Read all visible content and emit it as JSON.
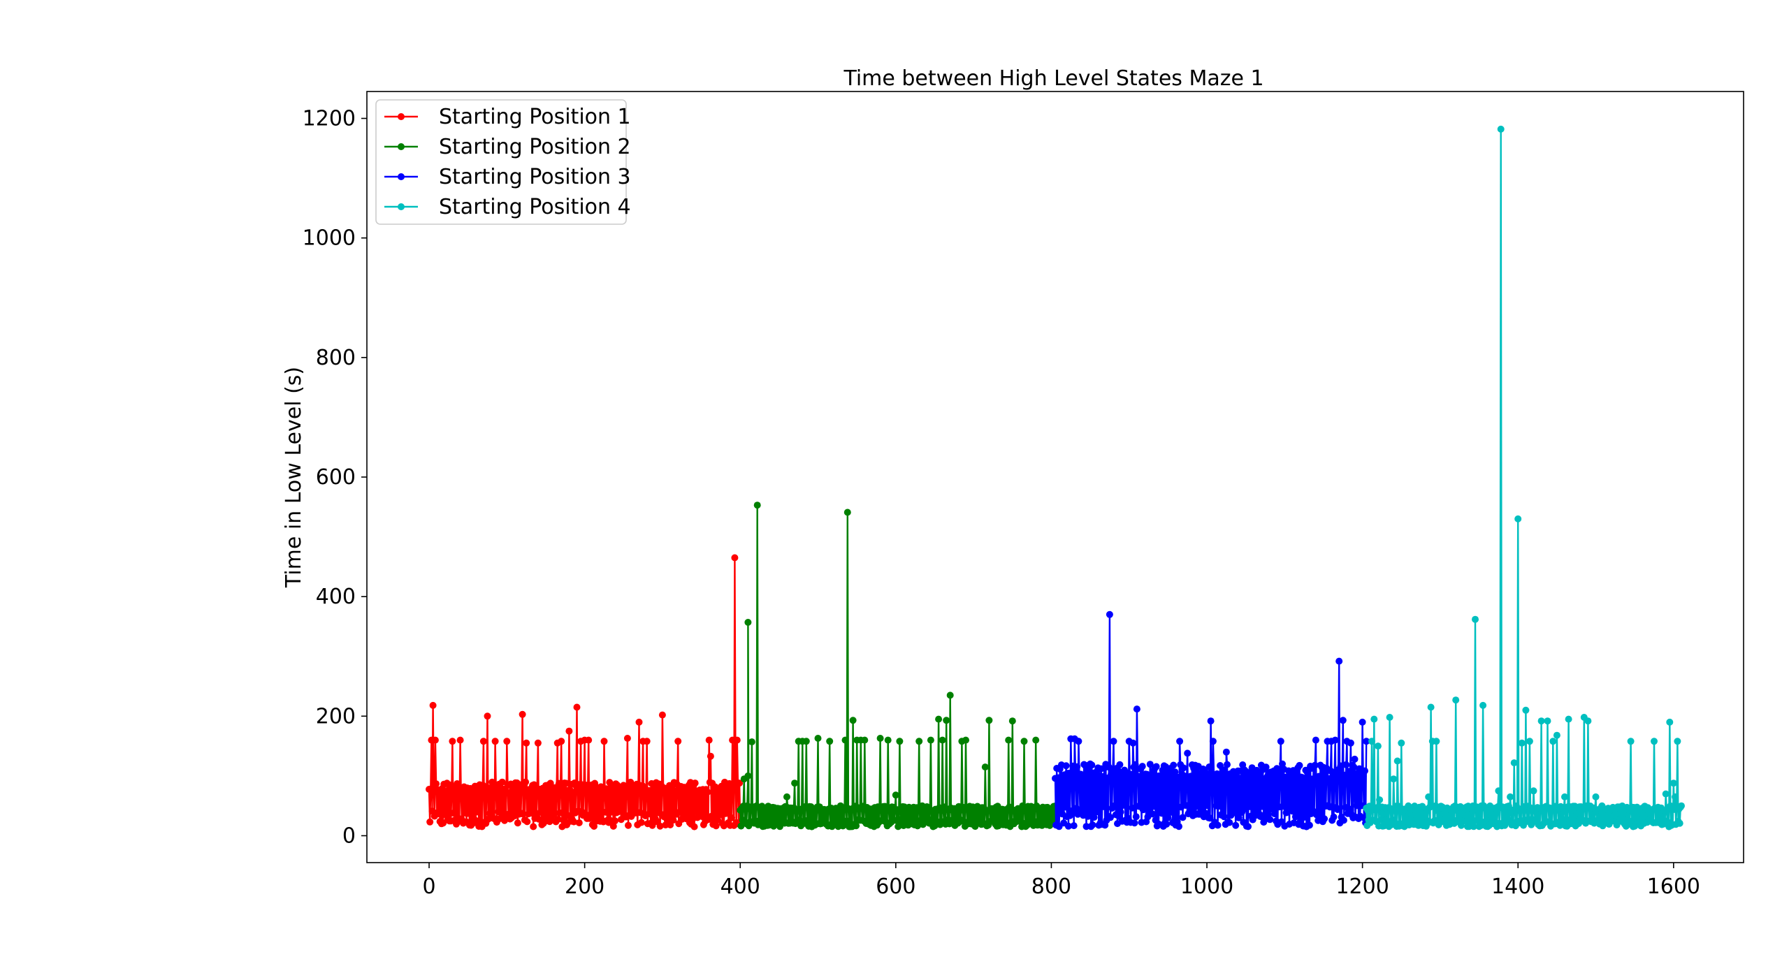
{
  "chart_data": {
    "type": "line",
    "title": "Time between High Level States Maze 1",
    "xlabel": "",
    "ylabel": "Time in Low Level (s)",
    "xlim": [
      -80,
      1690
    ],
    "ylim": [
      -45,
      1245
    ],
    "xticks": [
      0,
      200,
      400,
      600,
      800,
      1000,
      1200,
      1400,
      1600
    ],
    "yticks": [
      0,
      200,
      400,
      600,
      800,
      1000,
      1200
    ],
    "grid": false,
    "legend_position": "top-left",
    "marker": "circle",
    "series": [
      {
        "name": "Starting Position 1",
        "color": "#ff0000",
        "x_range": [
          0,
          400
        ],
        "baseline": [
          15,
          90
        ],
        "peaks": [
          [
            5,
            218
          ],
          [
            3,
            160
          ],
          [
            8,
            160
          ],
          [
            30,
            158
          ],
          [
            40,
            160
          ],
          [
            70,
            158
          ],
          [
            75,
            200
          ],
          [
            85,
            158
          ],
          [
            100,
            158
          ],
          [
            120,
            203
          ],
          [
            125,
            155
          ],
          [
            140,
            155
          ],
          [
            165,
            155
          ],
          [
            170,
            158
          ],
          [
            180,
            175
          ],
          [
            190,
            215
          ],
          [
            195,
            158
          ],
          [
            200,
            160
          ],
          [
            205,
            160
          ],
          [
            225,
            158
          ],
          [
            255,
            163
          ],
          [
            270,
            190
          ],
          [
            275,
            158
          ],
          [
            280,
            158
          ],
          [
            300,
            202
          ],
          [
            320,
            158
          ],
          [
            360,
            160
          ],
          [
            362,
            133
          ],
          [
            390,
            160
          ],
          [
            393,
            465
          ],
          [
            396,
            160
          ]
        ]
      },
      {
        "name": "Starting Position 2",
        "color": "#008000",
        "x_range": [
          400,
          805
        ],
        "baseline": [
          15,
          50
        ],
        "peaks": [
          [
            405,
            95
          ],
          [
            410,
            100
          ],
          [
            410,
            357
          ],
          [
            415,
            157
          ],
          [
            422,
            553
          ],
          [
            460,
            65
          ],
          [
            470,
            88
          ],
          [
            475,
            158
          ],
          [
            480,
            158
          ],
          [
            485,
            158
          ],
          [
            500,
            163
          ],
          [
            515,
            158
          ],
          [
            535,
            160
          ],
          [
            538,
            541
          ],
          [
            545,
            193
          ],
          [
            550,
            160
          ],
          [
            555,
            160
          ],
          [
            560,
            160
          ],
          [
            580,
            163
          ],
          [
            590,
            160
          ],
          [
            600,
            68
          ],
          [
            605,
            158
          ],
          [
            630,
            158
          ],
          [
            645,
            160
          ],
          [
            655,
            195
          ],
          [
            660,
            160
          ],
          [
            665,
            193
          ],
          [
            670,
            235
          ],
          [
            685,
            158
          ],
          [
            690,
            160
          ],
          [
            715,
            115
          ],
          [
            720,
            193
          ],
          [
            745,
            160
          ],
          [
            750,
            192
          ],
          [
            765,
            158
          ],
          [
            780,
            160
          ]
        ]
      },
      {
        "name": "Starting Position 3",
        "color": "#0000ff",
        "x_range": [
          805,
          1205
        ],
        "baseline": [
          15,
          120
        ],
        "peaks": [
          [
            825,
            162
          ],
          [
            830,
            162
          ],
          [
            835,
            158
          ],
          [
            875,
            370
          ],
          [
            880,
            158
          ],
          [
            900,
            158
          ],
          [
            905,
            155
          ],
          [
            910,
            212
          ],
          [
            965,
            158
          ],
          [
            975,
            138
          ],
          [
            1005,
            192
          ],
          [
            1008,
            158
          ],
          [
            1025,
            140
          ],
          [
            1095,
            158
          ],
          [
            1140,
            160
          ],
          [
            1155,
            158
          ],
          [
            1160,
            158
          ],
          [
            1165,
            160
          ],
          [
            1170,
            292
          ],
          [
            1175,
            193
          ],
          [
            1180,
            158
          ],
          [
            1185,
            155
          ],
          [
            1190,
            128
          ],
          [
            1190,
            85
          ],
          [
            1200,
            190
          ],
          [
            1205,
            158
          ]
        ]
      },
      {
        "name": "Starting Position 4",
        "color": "#00bfbf",
        "x_range": [
          1205,
          1610
        ],
        "baseline": [
          15,
          50
        ],
        "peaks": [
          [
            1212,
            158
          ],
          [
            1215,
            195
          ],
          [
            1220,
            150
          ],
          [
            1222,
            60
          ],
          [
            1235,
            198
          ],
          [
            1240,
            95
          ],
          [
            1245,
            125
          ],
          [
            1250,
            155
          ],
          [
            1285,
            65
          ],
          [
            1288,
            215
          ],
          [
            1290,
            158
          ],
          [
            1295,
            158
          ],
          [
            1320,
            227
          ],
          [
            1345,
            362
          ],
          [
            1355,
            218
          ],
          [
            1375,
            75
          ],
          [
            1378,
            1182
          ],
          [
            1390,
            65
          ],
          [
            1395,
            122
          ],
          [
            1400,
            530
          ],
          [
            1405,
            155
          ],
          [
            1410,
            210
          ],
          [
            1415,
            158
          ],
          [
            1420,
            75
          ],
          [
            1430,
            192
          ],
          [
            1438,
            192
          ],
          [
            1445,
            158
          ],
          [
            1450,
            168
          ],
          [
            1460,
            65
          ],
          [
            1465,
            195
          ],
          [
            1485,
            198
          ],
          [
            1490,
            192
          ],
          [
            1500,
            65
          ],
          [
            1545,
            158
          ],
          [
            1575,
            158
          ],
          [
            1590,
            70
          ],
          [
            1595,
            190
          ],
          [
            1600,
            88
          ],
          [
            1602,
            65
          ],
          [
            1605,
            158
          ],
          [
            1610,
            50
          ]
        ]
      }
    ]
  }
}
